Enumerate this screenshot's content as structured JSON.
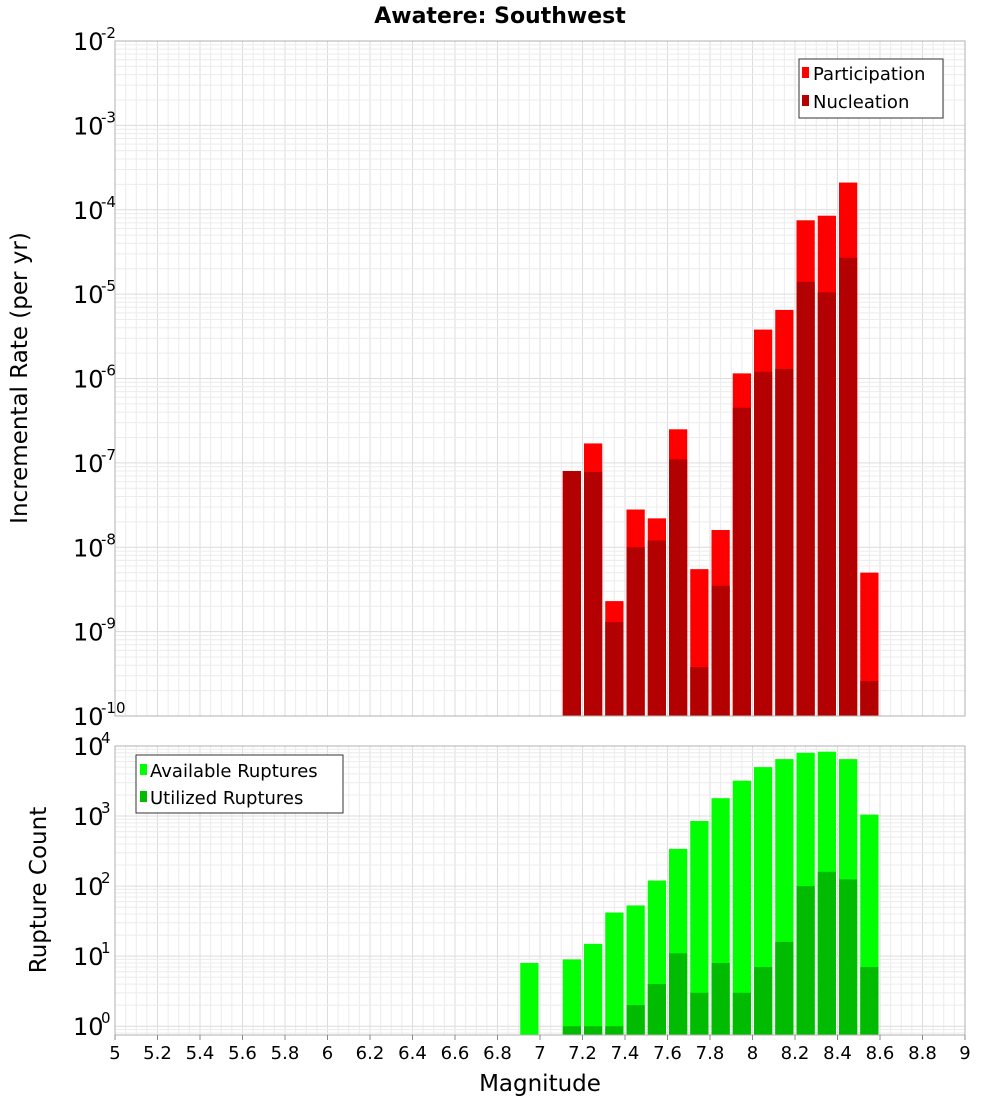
{
  "title": "Awatere: Southwest",
  "colors": {
    "participation": "#ff0000",
    "nucleation": "#b30000",
    "available": "#00ff00",
    "utilized": "#00bb00"
  },
  "chart_data": [
    {
      "type": "bar",
      "title": "Awatere: Southwest",
      "ylabel": "Incremental Rate (per yr)",
      "yscale": "log",
      "ylim": [
        1e-10,
        0.01
      ],
      "y_tick_exponents": [
        "-10",
        "-9",
        "-8",
        "-7",
        "-6",
        "-5",
        "-4",
        "-3",
        "-2"
      ],
      "xlim": [
        5,
        9
      ],
      "grid": true,
      "legend_position": "top-right",
      "legend": [
        "Participation",
        "Nucleation"
      ],
      "x": [
        7.15,
        7.25,
        7.35,
        7.45,
        7.55,
        7.65,
        7.75,
        7.85,
        7.95,
        8.05,
        8.15,
        8.25,
        8.35,
        8.45,
        8.55
      ],
      "series": [
        {
          "name": "Participation",
          "values": [
            8e-08,
            1.7e-07,
            2.3e-09,
            2.8e-08,
            2.2e-08,
            2.5e-07,
            5.5e-09,
            1.6e-08,
            1.15e-06,
            3.8e-06,
            6.5e-06,
            7.5e-05,
            8.5e-05,
            0.00021,
            5e-09
          ]
        },
        {
          "name": "Nucleation",
          "values": [
            8e-08,
            7.8e-08,
            1.3e-09,
            1e-08,
            1.2e-08,
            1.1e-07,
            3.8e-10,
            3.5e-09,
            4.5e-07,
            1.2e-06,
            1.3e-06,
            1.4e-05,
            1.05e-05,
            2.7e-05,
            2.6e-10
          ]
        }
      ]
    },
    {
      "type": "bar",
      "xlabel": "Magnitude",
      "ylabel": "Rupture Count",
      "yscale": "log",
      "ylim": [
        0.75,
        10000
      ],
      "y_tick_exponents": [
        "0",
        "1",
        "2",
        "3",
        "4"
      ],
      "xlim": [
        5,
        9
      ],
      "x_ticks": [
        "5",
        "5.2",
        "5.4",
        "5.6",
        "5.8",
        "6",
        "6.2",
        "6.4",
        "6.6",
        "6.8",
        "7",
        "7.2",
        "7.4",
        "7.6",
        "7.8",
        "8",
        "8.2",
        "8.4",
        "8.6",
        "8.8",
        "9"
      ],
      "grid": true,
      "legend_position": "top-left",
      "legend": [
        "Available Ruptures",
        "Utilized Ruptures"
      ],
      "x": [
        6.95,
        7.15,
        7.25,
        7.35,
        7.45,
        7.55,
        7.65,
        7.75,
        7.85,
        7.95,
        8.05,
        8.15,
        8.25,
        8.35,
        8.45,
        8.55
      ],
      "series": [
        {
          "name": "Available Ruptures",
          "values": [
            8,
            9,
            15,
            42,
            53,
            120,
            340,
            850,
            1800,
            3200,
            5000,
            6500,
            8000,
            8300,
            6500,
            1050
          ]
        },
        {
          "name": "Utilized Ruptures",
          "values": [
            null,
            1,
            1,
            1,
            2,
            4,
            11,
            3,
            8,
            3,
            7,
            16,
            100,
            160,
            125,
            7
          ]
        }
      ]
    }
  ]
}
